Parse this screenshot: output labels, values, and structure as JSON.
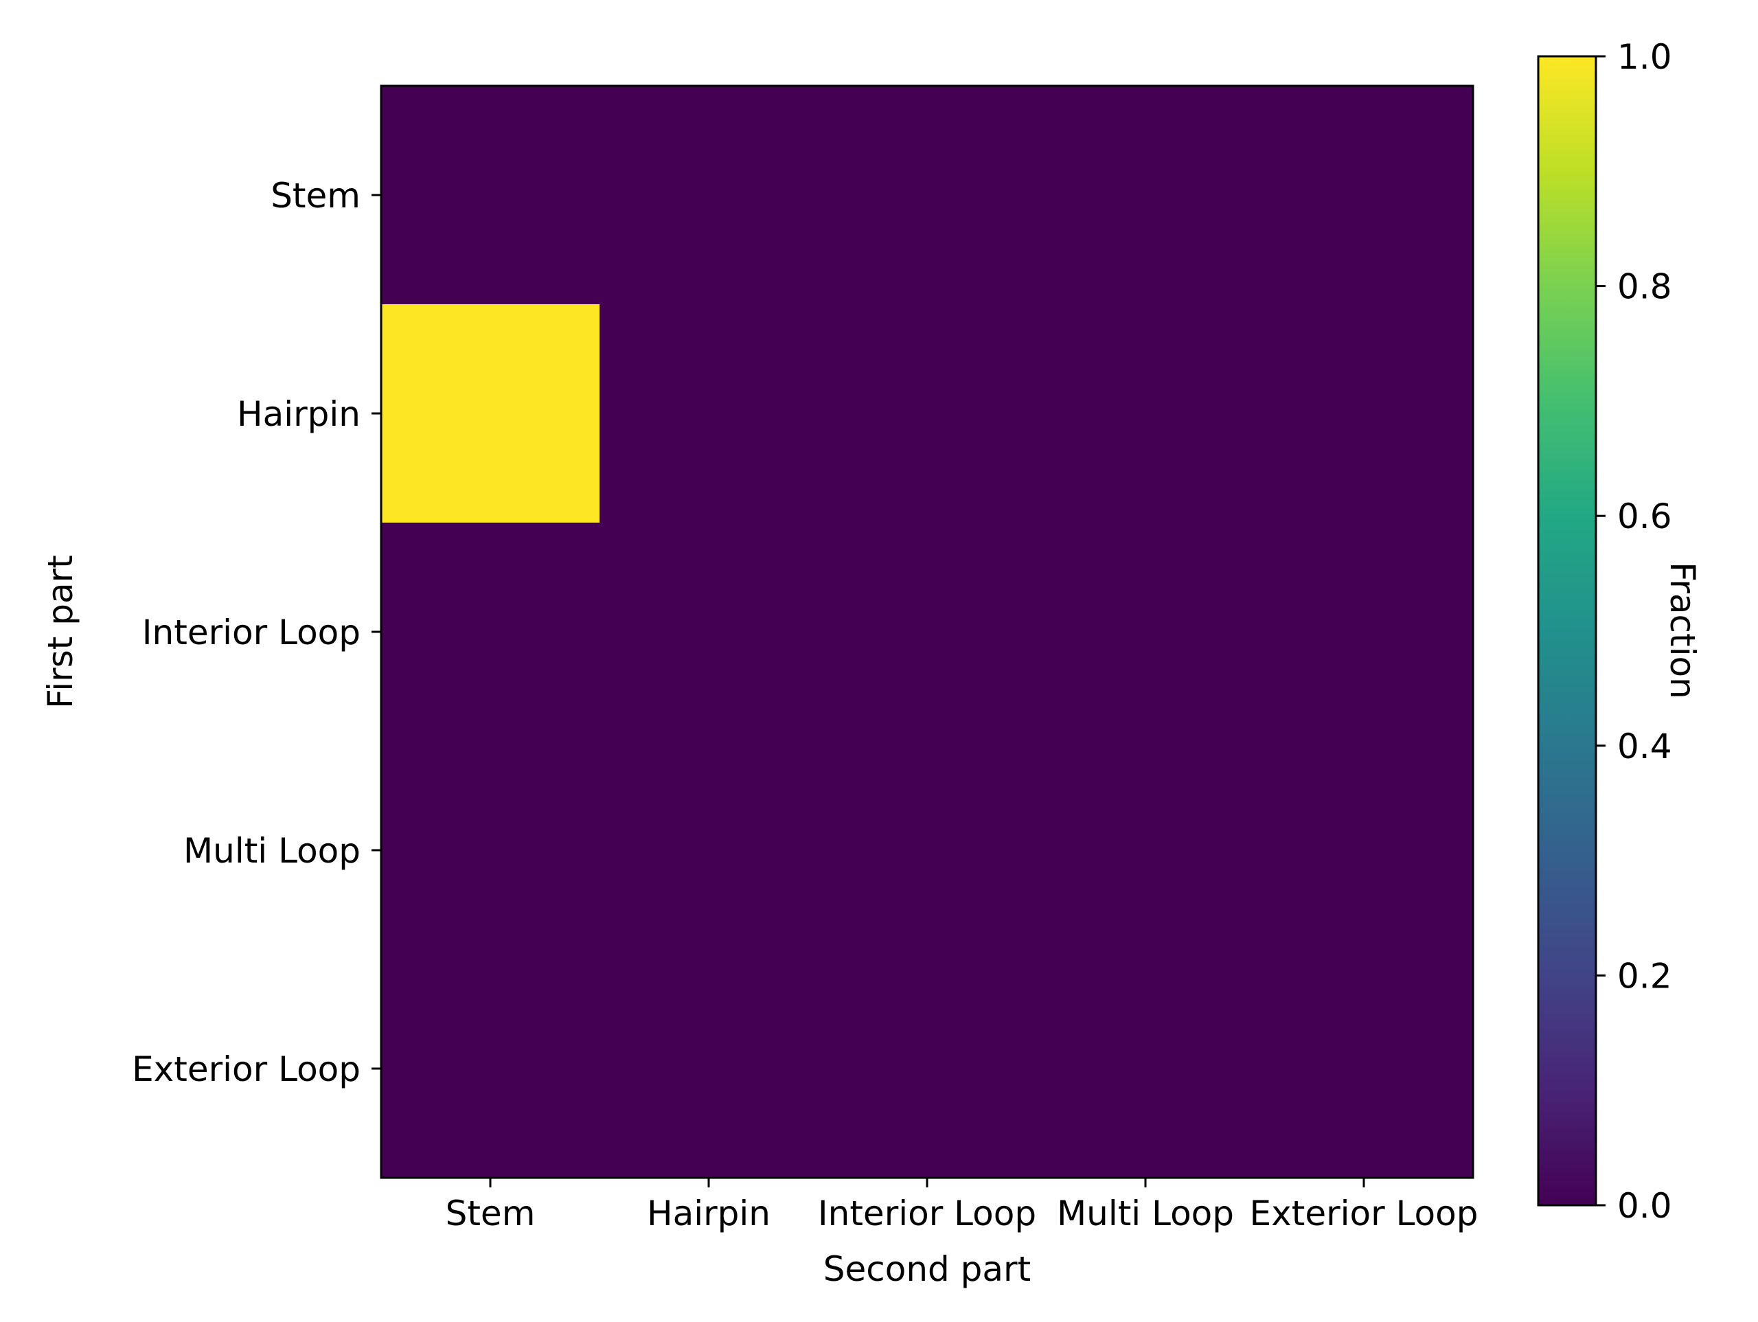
{
  "chart_data": {
    "type": "heatmap",
    "title": "",
    "xlabel": "Second part",
    "ylabel": "First part",
    "x_categories": [
      "Stem",
      "Hairpin",
      "Interior Loop",
      "Multi Loop",
      "Exterior Loop"
    ],
    "y_categories": [
      "Stem",
      "Hairpin",
      "Interior Loop",
      "Multi Loop",
      "Exterior Loop"
    ],
    "values": [
      [
        0,
        0,
        0,
        0,
        0
      ],
      [
        1,
        0,
        0,
        0,
        0
      ],
      [
        0,
        0,
        0,
        0,
        0
      ],
      [
        0,
        0,
        0,
        0,
        0
      ],
      [
        0,
        0,
        0,
        0,
        0
      ]
    ],
    "colormap": "viridis",
    "colorbar": {
      "label": "Fraction",
      "range": [
        0.0,
        1.0
      ],
      "ticks": [
        "0.0",
        "0.2",
        "0.4",
        "0.6",
        "0.8",
        "1.0"
      ]
    },
    "colors": {
      "min": "#440154",
      "max": "#fde725"
    }
  }
}
